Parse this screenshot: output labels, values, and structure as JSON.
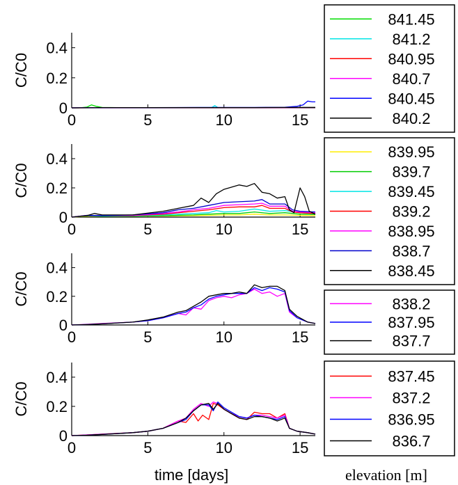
{
  "xlabel": "time [days]",
  "legend_title": "elevation [m]",
  "chart_data": [
    {
      "type": "line",
      "ylabel": "C/C0",
      "xlim": [
        0,
        16
      ],
      "ylim": [
        0,
        0.5
      ],
      "xticks": [
        0,
        5,
        10,
        15
      ],
      "yticks": [
        0,
        0.2,
        0.4
      ],
      "grid": false,
      "legend_placement": "right",
      "series": [
        {
          "name": "841.45",
          "color": "#00dd00",
          "x": [
            0,
            0.5,
            1,
            1.3,
            1.6,
            2,
            3,
            5,
            8,
            10,
            12,
            14,
            15,
            16
          ],
          "y": [
            0,
            0,
            0.005,
            0.02,
            0.01,
            0.003,
            0.002,
            0.002,
            0.002,
            0.002,
            0.002,
            0.002,
            0.002,
            0.002
          ]
        },
        {
          "name": "841.2",
          "color": "#00e5e5",
          "x": [
            0,
            2,
            5,
            8,
            9.2,
            9.4,
            9.6,
            10,
            12,
            14,
            15,
            16
          ],
          "y": [
            0,
            0.002,
            0.002,
            0.002,
            0.003,
            0.015,
            0.002,
            0.002,
            0.002,
            0.002,
            0.003,
            0.004
          ]
        },
        {
          "name": "840.95",
          "color": "#ff0000",
          "x": [
            0,
            5,
            10,
            14,
            16
          ],
          "y": [
            0,
            0.002,
            0.002,
            0.002,
            0.003
          ]
        },
        {
          "name": "840.7",
          "color": "#ff00ff",
          "x": [
            0,
            5,
            10,
            14,
            16
          ],
          "y": [
            0,
            0.002,
            0.002,
            0.002,
            0.002
          ]
        },
        {
          "name": "840.45",
          "color": "#0000ff",
          "x": [
            0,
            2,
            5,
            8,
            10,
            12,
            14,
            14.8,
            15.2,
            15.5,
            15.8,
            16
          ],
          "y": [
            0,
            0.002,
            0.002,
            0.003,
            0.003,
            0.003,
            0.004,
            0.01,
            0.02,
            0.045,
            0.04,
            0.04
          ]
        },
        {
          "name": "840.2",
          "color": "#000000",
          "x": [
            0,
            2,
            5,
            8,
            10,
            12,
            14,
            15,
            16
          ],
          "y": [
            0,
            0.002,
            0.002,
            0.002,
            0.002,
            0.002,
            0.003,
            0.003,
            0.003
          ]
        }
      ]
    },
    {
      "type": "line",
      "ylabel": "C/C0",
      "xlim": [
        0,
        16
      ],
      "ylim": [
        0,
        0.5
      ],
      "xticks": [
        0,
        5,
        10,
        15
      ],
      "yticks": [
        0,
        0.2,
        0.4
      ],
      "grid": false,
      "legend_placement": "right",
      "series": [
        {
          "name": "839.95",
          "color": "#ffee00",
          "x": [
            0,
            1,
            2,
            4,
            6,
            8,
            9,
            10,
            11,
            12,
            13,
            14,
            15,
            16
          ],
          "y": [
            0,
            0.005,
            0.005,
            0.005,
            0.008,
            0.01,
            0.012,
            0.015,
            0.015,
            0.02,
            0.015,
            0.015,
            0.012,
            0.01
          ]
        },
        {
          "name": "839.7",
          "color": "#00cc00",
          "x": [
            0,
            1,
            2,
            4,
            6,
            8,
            9,
            10,
            11,
            12,
            13,
            14,
            15,
            16
          ],
          "y": [
            0,
            0.008,
            0.006,
            0.006,
            0.01,
            0.015,
            0.02,
            0.025,
            0.025,
            0.035,
            0.025,
            0.03,
            0.02,
            0.018
          ]
        },
        {
          "name": "839.45",
          "color": "#00e5e5",
          "x": [
            0,
            1,
            2,
            4,
            6,
            8,
            9,
            9.5,
            10,
            11,
            12,
            13,
            14,
            15,
            16
          ],
          "y": [
            0,
            0.01,
            0.008,
            0.008,
            0.015,
            0.025,
            0.03,
            0.045,
            0.035,
            0.04,
            0.055,
            0.04,
            0.045,
            0.03,
            0.025
          ]
        },
        {
          "name": "839.2",
          "color": "#ff0000",
          "x": [
            0,
            1,
            2,
            4,
            6,
            7,
            8,
            9,
            10,
            11,
            12,
            12.5,
            13,
            14,
            14.5,
            15,
            16
          ],
          "y": [
            0,
            0.012,
            0.01,
            0.01,
            0.02,
            0.03,
            0.04,
            0.05,
            0.065,
            0.07,
            0.07,
            0.08,
            0.06,
            0.06,
            0.035,
            0.03,
            0.025
          ]
        },
        {
          "name": "838.95",
          "color": "#ff00ff",
          "x": [
            0,
            1,
            2,
            4,
            6,
            7,
            8,
            9,
            10,
            11,
            12,
            12.5,
            13,
            14,
            14.5,
            15,
            16
          ],
          "y": [
            0,
            0.01,
            0.01,
            0.012,
            0.025,
            0.035,
            0.05,
            0.06,
            0.08,
            0.085,
            0.09,
            0.095,
            0.075,
            0.075,
            0.04,
            0.035,
            0.03
          ]
        },
        {
          "name": "838.7",
          "color": "#0000cc",
          "x": [
            0,
            1,
            2,
            4,
            6,
            7,
            8,
            9,
            10,
            11,
            12,
            12.5,
            13,
            14,
            14.5,
            15,
            16
          ],
          "y": [
            0,
            0.012,
            0.01,
            0.015,
            0.03,
            0.05,
            0.06,
            0.08,
            0.1,
            0.105,
            0.11,
            0.12,
            0.09,
            0.09,
            0.05,
            0.04,
            0.035
          ]
        },
        {
          "name": "838.45",
          "color": "#000000",
          "x": [
            0,
            1,
            1.5,
            2,
            4,
            6,
            7,
            8,
            8.5,
            9,
            9.5,
            10,
            11,
            11.5,
            12,
            12.5,
            13,
            13.5,
            14,
            14.3,
            14.6,
            15,
            15.3,
            15.6,
            16
          ],
          "y": [
            0,
            0.01,
            0.025,
            0.015,
            0.015,
            0.04,
            0.06,
            0.08,
            0.13,
            0.1,
            0.16,
            0.19,
            0.22,
            0.21,
            0.23,
            0.17,
            0.16,
            0.13,
            0.14,
            0.05,
            0.03,
            0.2,
            0.14,
            0.04,
            0.02
          ]
        }
      ]
    },
    {
      "type": "line",
      "ylabel": "C/C0",
      "xlim": [
        0,
        16
      ],
      "ylim": [
        0,
        0.5
      ],
      "xticks": [
        0,
        5,
        10,
        15
      ],
      "yticks": [
        0,
        0.2,
        0.4
      ],
      "grid": false,
      "legend_placement": "right",
      "series": [
        {
          "name": "838.2",
          "color": "#ff00ff",
          "x": [
            0,
            1,
            2,
            4,
            5,
            6,
            7,
            7.5,
            8,
            8.5,
            9,
            9.5,
            10,
            10.5,
            11,
            11.5,
            12,
            12.5,
            13,
            13.5,
            14,
            14.3,
            14.8,
            15.5,
            16
          ],
          "y": [
            0,
            0.005,
            0.01,
            0.02,
            0.03,
            0.05,
            0.08,
            0.07,
            0.12,
            0.11,
            0.17,
            0.19,
            0.2,
            0.19,
            0.21,
            0.22,
            0.25,
            0.22,
            0.23,
            0.2,
            0.22,
            0.09,
            0.05,
            0.02,
            0.01
          ]
        },
        {
          "name": "837.95",
          "color": "#0000ff",
          "x": [
            0,
            1,
            2,
            4,
            5,
            6,
            7,
            7.5,
            8,
            8.5,
            9,
            9.5,
            10,
            10.5,
            11,
            11.5,
            12,
            12.5,
            13,
            13.5,
            14,
            14.3,
            14.8,
            15.5,
            16
          ],
          "y": [
            0,
            0.003,
            0.008,
            0.02,
            0.03,
            0.05,
            0.08,
            0.09,
            0.12,
            0.14,
            0.18,
            0.2,
            0.21,
            0.22,
            0.22,
            0.22,
            0.26,
            0.24,
            0.26,
            0.25,
            0.23,
            0.1,
            0.05,
            0.02,
            0.01
          ]
        },
        {
          "name": "837.7",
          "color": "#000000",
          "x": [
            0,
            1,
            2,
            4,
            5,
            6,
            7,
            7.5,
            8,
            8.5,
            9,
            9.5,
            10,
            10.5,
            11,
            11.5,
            12,
            12.5,
            13,
            13.5,
            14,
            14.3,
            14.8,
            15.5,
            16
          ],
          "y": [
            0,
            0.003,
            0.008,
            0.02,
            0.035,
            0.055,
            0.09,
            0.1,
            0.13,
            0.16,
            0.2,
            0.21,
            0.22,
            0.22,
            0.23,
            0.22,
            0.28,
            0.26,
            0.27,
            0.27,
            0.24,
            0.11,
            0.06,
            0.02,
            0.01
          ]
        }
      ]
    },
    {
      "type": "line",
      "ylabel": "C/C0",
      "xlim": [
        0,
        16
      ],
      "ylim": [
        0,
        0.5
      ],
      "xticks": [
        0,
        5,
        10,
        15
      ],
      "yticks": [
        0,
        0.2,
        0.4
      ],
      "grid": false,
      "legend_placement": "right",
      "series": [
        {
          "name": "837.45",
          "color": "#ff0000",
          "x": [
            0,
            1,
            2,
            4,
            5,
            6,
            7,
            7.5,
            8,
            8.3,
            8.6,
            9,
            9.3,
            9.6,
            10,
            10.5,
            11,
            11.5,
            12,
            12.5,
            13,
            13.5,
            14,
            14.3,
            14.8,
            15.5,
            16
          ],
          "y": [
            0,
            0.005,
            0.01,
            0.02,
            0.03,
            0.05,
            0.1,
            0.09,
            0.15,
            0.1,
            0.14,
            0.11,
            0.22,
            0.21,
            0.18,
            0.15,
            0.12,
            0.11,
            0.16,
            0.15,
            0.15,
            0.12,
            0.15,
            0.05,
            0.03,
            0.02,
            0.01
          ]
        },
        {
          "name": "837.2",
          "color": "#ff00ff",
          "x": [
            0,
            1,
            2,
            4,
            5,
            6,
            7,
            7.5,
            8,
            8.5,
            9,
            9.3,
            9.6,
            10,
            10.5,
            11,
            11.5,
            12,
            12.5,
            13,
            13.5,
            14,
            14.3,
            14.8,
            15.5,
            16
          ],
          "y": [
            0,
            0.005,
            0.01,
            0.02,
            0.03,
            0.05,
            0.1,
            0.12,
            0.18,
            0.22,
            0.2,
            0.23,
            0.22,
            0.18,
            0.15,
            0.13,
            0.12,
            0.14,
            0.14,
            0.13,
            0.12,
            0.14,
            0.05,
            0.03,
            0.02,
            0.01
          ]
        },
        {
          "name": "836.95",
          "color": "#0000ff",
          "x": [
            0,
            1,
            2,
            4,
            5,
            6,
            7,
            7.5,
            8,
            8.5,
            9,
            9.3,
            9.6,
            10,
            10.5,
            11,
            11.5,
            12,
            12.5,
            13,
            13.5,
            14,
            14.3,
            14.8,
            15.5,
            16
          ],
          "y": [
            0,
            0.003,
            0.008,
            0.02,
            0.03,
            0.05,
            0.09,
            0.11,
            0.17,
            0.21,
            0.21,
            0.17,
            0.23,
            0.19,
            0.16,
            0.13,
            0.12,
            0.14,
            0.13,
            0.12,
            0.11,
            0.13,
            0.05,
            0.03,
            0.02,
            0.01
          ]
        },
        {
          "name": "836.7",
          "color": "#000000",
          "x": [
            0,
            1,
            2,
            4,
            5,
            6,
            7,
            7.5,
            8,
            8.5,
            9,
            9.3,
            9.6,
            10,
            10.5,
            11,
            11.5,
            12,
            12.5,
            13,
            13.5,
            14,
            14.3,
            14.8,
            15.5,
            16
          ],
          "y": [
            0,
            0.003,
            0.008,
            0.02,
            0.03,
            0.05,
            0.09,
            0.12,
            0.17,
            0.21,
            0.22,
            0.18,
            0.22,
            0.18,
            0.15,
            0.12,
            0.11,
            0.13,
            0.13,
            0.12,
            0.1,
            0.12,
            0.05,
            0.03,
            0.02,
            0.01
          ]
        }
      ]
    }
  ]
}
